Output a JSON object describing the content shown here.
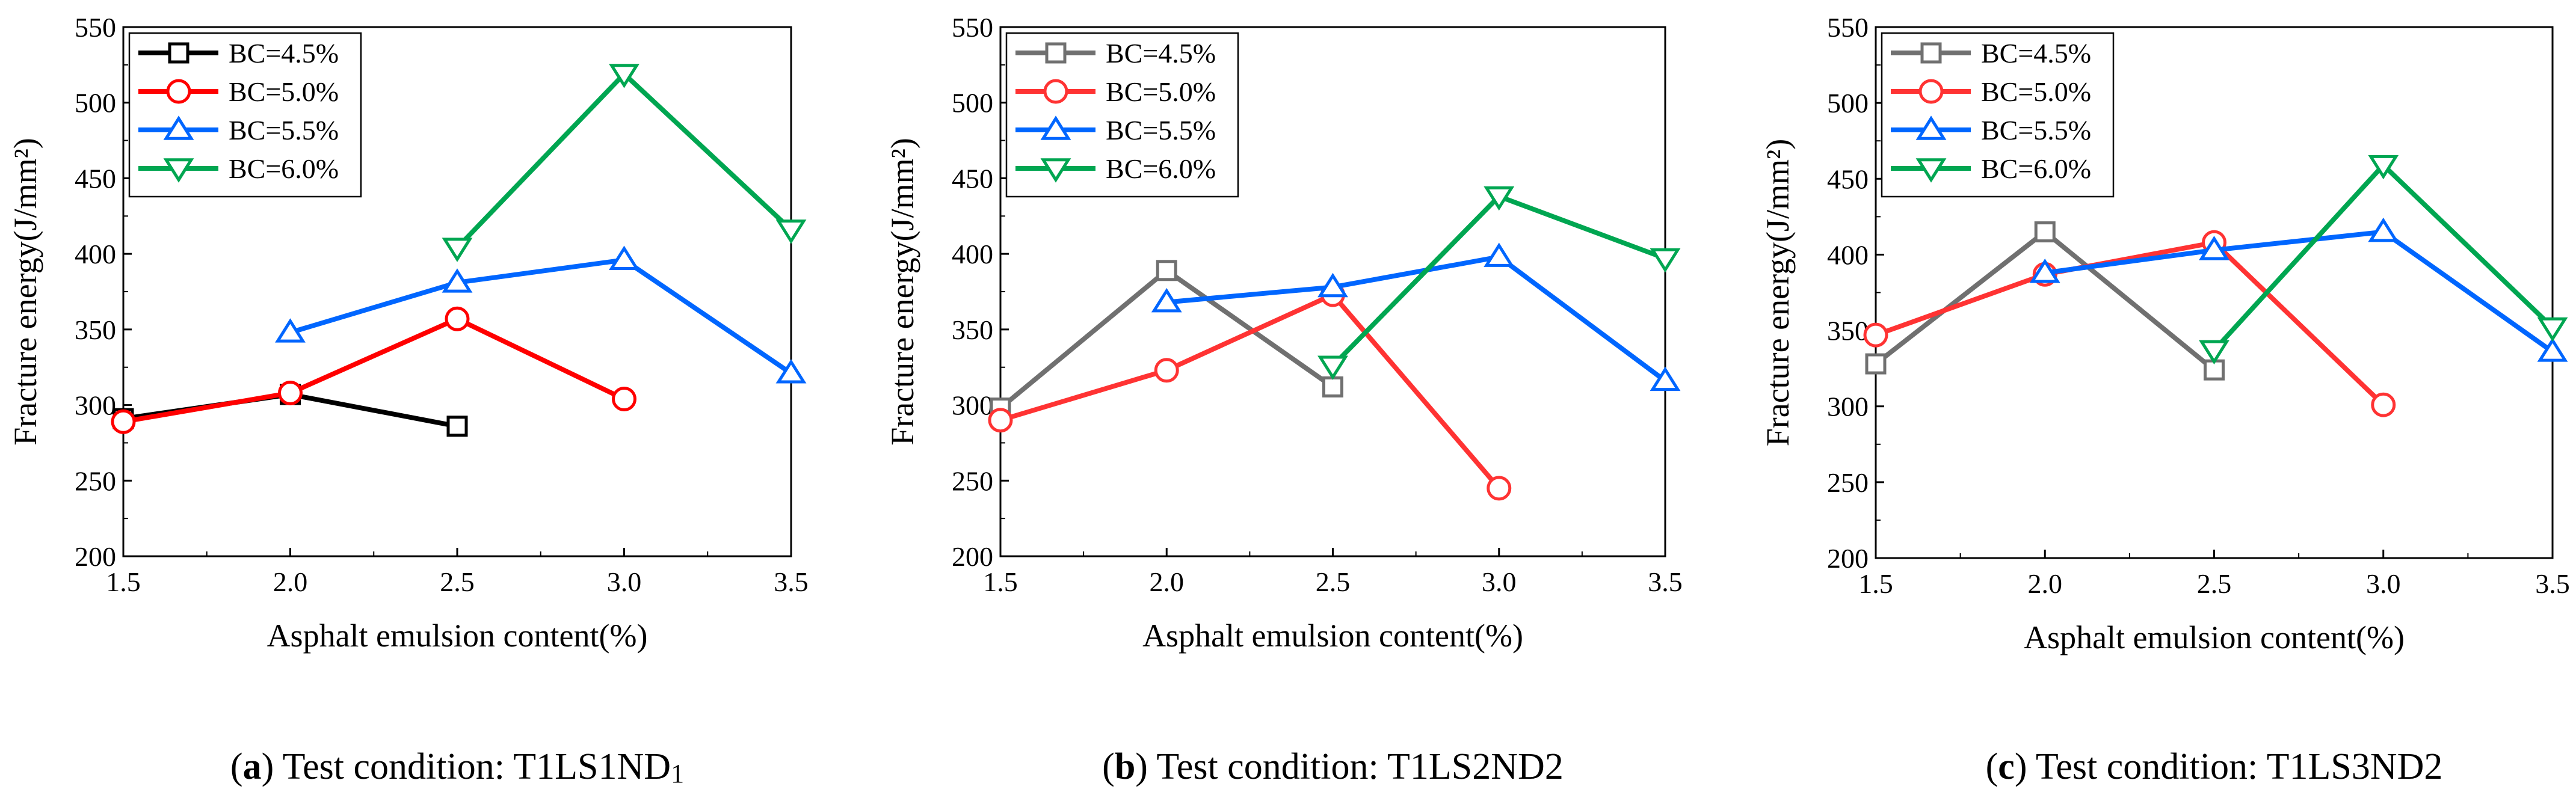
{
  "chart_data": [
    {
      "type": "line",
      "panel": "a",
      "caption": {
        "letter": "a",
        "text": "Test condition: T1LS1ND",
        "sub": "1"
      },
      "xlabel": "Asphalt emulsion content(%)",
      "ylabel": "Fracture energy(J/mm²)",
      "xlim": [
        1.5,
        3.5
      ],
      "ylim": [
        200,
        550
      ],
      "xticks": [
        "1.5",
        "2.0",
        "2.5",
        "3.0",
        "3.5"
      ],
      "yticks": [
        "200",
        "250",
        "300",
        "350",
        "400",
        "450",
        "500",
        "550"
      ],
      "legend_position": "top-left",
      "series": [
        {
          "name": "BC=4.5%",
          "color": "#000000",
          "marker": "square",
          "x": [
            1.5,
            2.0,
            2.5
          ],
          "values": [
            291,
            307,
            286
          ]
        },
        {
          "name": "BC=5.0%",
          "color": "#ff0000",
          "marker": "circle",
          "x": [
            1.5,
            2.0,
            2.5,
            3.0
          ],
          "values": [
            289,
            308,
            357,
            304
          ]
        },
        {
          "name": "BC=5.5%",
          "color": "#0066ff",
          "marker": "triangle-up",
          "x": [
            2.0,
            2.5,
            3.0,
            3.5
          ],
          "values": [
            348,
            381,
            396,
            321
          ]
        },
        {
          "name": "BC=6.0%",
          "color": "#00a651",
          "marker": "triangle-down",
          "x": [
            2.5,
            3.0,
            3.5
          ],
          "values": [
            404,
            519,
            416
          ]
        }
      ]
    },
    {
      "type": "line",
      "panel": "b",
      "caption": {
        "letter": "b",
        "text": "Test condition: T1LS2ND2"
      },
      "xlabel": "Asphalt emulsion content(%)",
      "ylabel": "Fracture energy(J/mm²)",
      "xlim": [
        1.5,
        3.5
      ],
      "ylim": [
        200,
        550
      ],
      "xticks": [
        "1.5",
        "2.0",
        "2.5",
        "3.0",
        "3.5"
      ],
      "yticks": [
        "200",
        "250",
        "300",
        "350",
        "400",
        "450",
        "500",
        "550"
      ],
      "legend_position": "top-left",
      "series": [
        {
          "name": "BC=4.5%",
          "color": "#707070",
          "marker": "square",
          "x": [
            1.5,
            2.0,
            2.5
          ],
          "values": [
            298,
            389,
            312
          ]
        },
        {
          "name": "BC=5.0%",
          "color": "#ff3333",
          "marker": "circle",
          "x": [
            1.5,
            2.0,
            2.5,
            3.0
          ],
          "values": [
            290,
            323,
            373,
            245
          ]
        },
        {
          "name": "BC=5.5%",
          "color": "#0066ff",
          "marker": "triangle-up",
          "x": [
            2.0,
            2.5,
            3.0,
            3.5
          ],
          "values": [
            368,
            378,
            398,
            316
          ]
        },
        {
          "name": "BC=6.0%",
          "color": "#00a651",
          "marker": "triangle-down",
          "x": [
            2.5,
            3.0,
            3.5
          ],
          "values": [
            326,
            438,
            397
          ]
        }
      ]
    },
    {
      "type": "line",
      "panel": "c",
      "caption": {
        "letter": "c",
        "text": "Test condition: T1LS3ND2"
      },
      "xlabel": "Asphalt emulsion content(%)",
      "ylabel": "Fracture energy(J/mm²)",
      "xlim": [
        1.5,
        3.5
      ],
      "ylim": [
        200,
        550
      ],
      "xticks": [
        "1.5",
        "2.0",
        "2.5",
        "3.0",
        "3.5"
      ],
      "yticks": [
        "200",
        "250",
        "300",
        "350",
        "400",
        "450",
        "500",
        "550"
      ],
      "legend_position": "top-left",
      "series": [
        {
          "name": "BC=4.5%",
          "color": "#707070",
          "marker": "square",
          "x": [
            1.5,
            2.0,
            2.5
          ],
          "values": [
            328,
            415,
            324
          ]
        },
        {
          "name": "BC=5.0%",
          "color": "#ff3333",
          "marker": "circle",
          "x": [
            1.5,
            2.0,
            2.5,
            3.0
          ],
          "values": [
            347,
            387,
            408,
            301
          ]
        },
        {
          "name": "BC=5.5%",
          "color": "#0066ff",
          "marker": "triangle-up",
          "x": [
            2.0,
            2.5,
            3.0,
            3.5
          ],
          "values": [
            388,
            403,
            415,
            336
          ]
        },
        {
          "name": "BC=6.0%",
          "color": "#00a651",
          "marker": "triangle-down",
          "x": [
            2.5,
            3.0,
            3.5
          ],
          "values": [
            337,
            459,
            352
          ]
        }
      ]
    }
  ]
}
